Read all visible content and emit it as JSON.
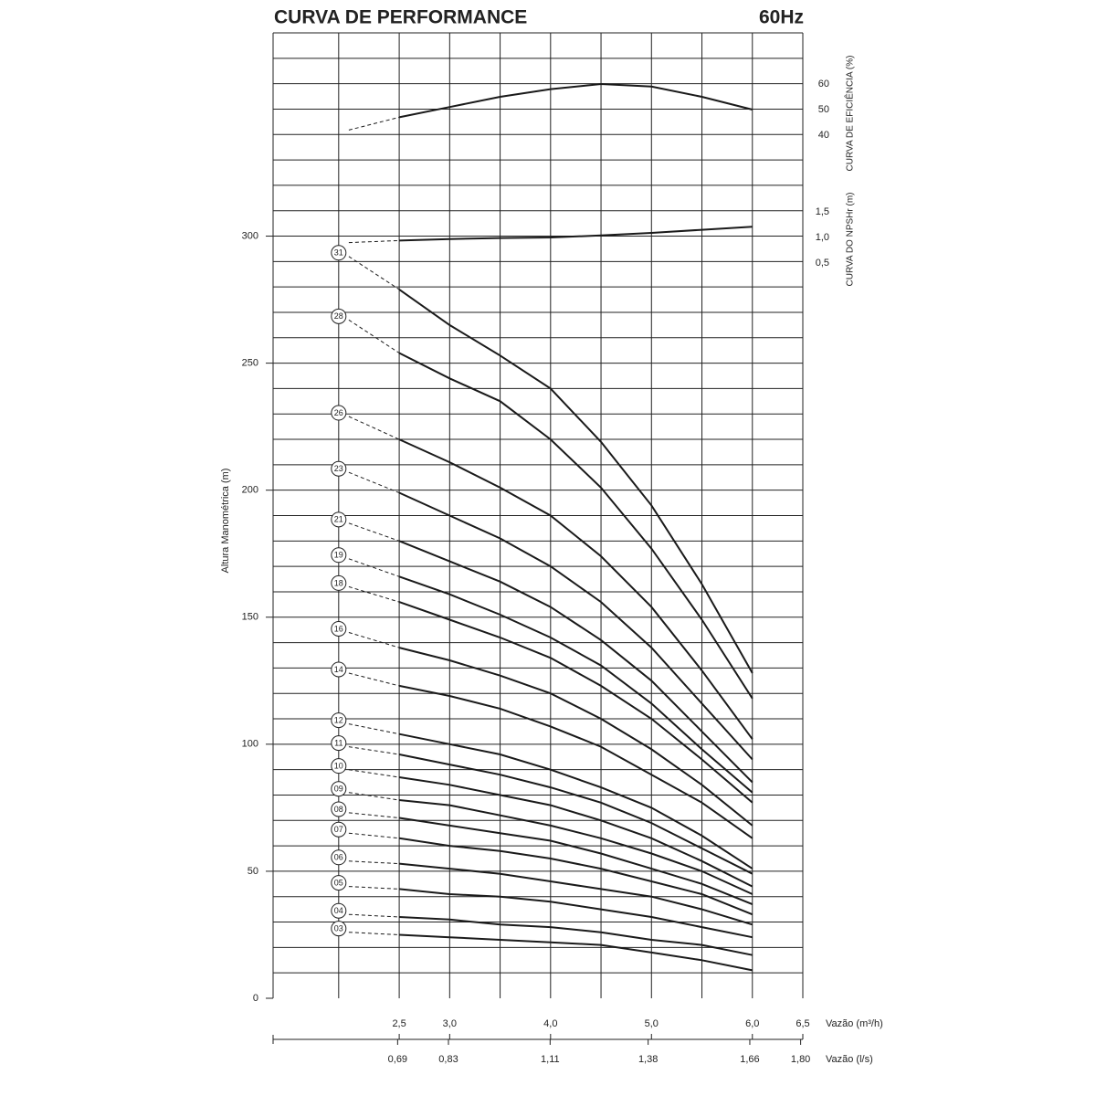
{
  "chart_data": [
    {
      "type": "line",
      "ylabel": "CURVA DE EFICIÊNCIA (%)",
      "ylim": [
        30,
        80
      ],
      "yticks": [
        40,
        50,
        60
      ],
      "dash_until_x": 2.5,
      "x": [
        2.0,
        2.5,
        3.0,
        3.5,
        4.0,
        4.5,
        5.0,
        5.5,
        6.0
      ],
      "series": [
        {
          "color": "#1a1a1a",
          "values": [
            42,
            47,
            51,
            55,
            58,
            60,
            59,
            55,
            50
          ]
        }
      ]
    },
    {
      "type": "line",
      "ylabel": "CURVA DO NPSHr (m)",
      "ylim": [
        0,
        2.5
      ],
      "yticks": [
        {
          "value": 0.5,
          "label": "0,5"
        },
        {
          "value": 1.0,
          "label": "1,0"
        },
        {
          "value": 1.5,
          "label": "1,5"
        }
      ],
      "dash_until_x": 2.5,
      "x": [
        2.0,
        2.5,
        3.0,
        3.5,
        4.0,
        4.5,
        5.0,
        5.5,
        6.0
      ],
      "series": [
        {
          "color": "#1a1a1a",
          "values": [
            0.9,
            0.94,
            0.97,
            0.99,
            1.0,
            1.04,
            1.09,
            1.15,
            1.21
          ]
        }
      ]
    },
    {
      "type": "line",
      "title": "CURVA DE PERFORMANCE",
      "subtitle": "60Hz",
      "ylabel": "Altura Manométrica (m)",
      "xlabel": "Vazão (m³/h)",
      "x2label": "Vazão (l/s)",
      "xlim": [
        1.25,
        6.5
      ],
      "x2lim": [
        0.347,
        1.806
      ],
      "ylim": [
        0,
        380
      ],
      "yticks": [
        0,
        50,
        100,
        150,
        200,
        250,
        300
      ],
      "xticks": [
        {
          "value": 2.5,
          "label": "2,5"
        },
        {
          "value": 3.0,
          "label": "3,0"
        },
        {
          "value": 4.0,
          "label": "4,0"
        },
        {
          "value": 5.0,
          "label": "5,0"
        },
        {
          "value": 6.0,
          "label": "6,0"
        },
        {
          "value": 6.5,
          "label": "6,5"
        }
      ],
      "x2ticks": [
        {
          "value": 0.69,
          "label": "0,69"
        },
        {
          "value": 0.83,
          "label": "0,83"
        },
        {
          "value": 1.11,
          "label": "1,11"
        },
        {
          "value": 1.38,
          "label": "1,38"
        },
        {
          "value": 1.66,
          "label": "1,66"
        },
        {
          "value": 1.8,
          "label": "1,80"
        }
      ],
      "x_grid": [
        1.9,
        2.5,
        3.0,
        3.5,
        4.0,
        4.5,
        5.0,
        5.5,
        6.0
      ],
      "y_grid": [
        10,
        20,
        30,
        40,
        50,
        60,
        70,
        80,
        90,
        100,
        110,
        120,
        130,
        140,
        150,
        160,
        170,
        180,
        190,
        200,
        210,
        220,
        230,
        240,
        250,
        260,
        270,
        280,
        290,
        300,
        310,
        320,
        330,
        340,
        350,
        360,
        370
      ],
      "label_x": 1.9,
      "dash_until_x": 2.5,
      "grid": true,
      "x": [
        2.0,
        2.5,
        3.0,
        3.5,
        4.0,
        4.5,
        5.0,
        5.5,
        6.0
      ],
      "series": [
        {
          "name": "31",
          "color": "#1a1a1a",
          "values": [
            292,
            279,
            265,
            253,
            240,
            219,
            194,
            163,
            128
          ]
        },
        {
          "name": "28",
          "color": "#1a1a1a",
          "values": [
            267,
            254,
            244,
            235,
            220,
            201,
            177,
            149,
            118
          ]
        },
        {
          "name": "26",
          "color": "#1a1a1a",
          "values": [
            229,
            220,
            211,
            201,
            190,
            174,
            154,
            129,
            102
          ]
        },
        {
          "name": "23",
          "color": "#1a1a1a",
          "values": [
            207,
            199,
            190,
            181,
            170,
            156,
            138,
            116,
            94
          ]
        },
        {
          "name": "21",
          "color": "#1a1a1a",
          "values": [
            187,
            180,
            172,
            164,
            154,
            141,
            125,
            105,
            85
          ]
        },
        {
          "name": "19",
          "color": "#1a1a1a",
          "values": [
            173,
            166,
            159,
            151,
            142,
            131,
            116,
            98,
            81
          ]
        },
        {
          "name": "18",
          "color": "#1a1a1a",
          "values": [
            162,
            156,
            149,
            142,
            134,
            123,
            110,
            94,
            77
          ]
        },
        {
          "name": "16",
          "color": "#1a1a1a",
          "values": [
            144,
            138,
            133,
            127,
            120,
            110,
            98,
            84,
            68
          ]
        },
        {
          "name": "14",
          "color": "#1a1a1a",
          "values": [
            128,
            123,
            119,
            114,
            107,
            99,
            88,
            77,
            63
          ]
        },
        {
          "name": "12",
          "color": "#1a1a1a",
          "values": [
            108,
            104,
            100,
            96,
            90,
            83,
            75,
            64,
            51
          ]
        },
        {
          "name": "11",
          "color": "#1a1a1a",
          "values": [
            99,
            96,
            92,
            88,
            83,
            77,
            69,
            59,
            49
          ]
        },
        {
          "name": "10",
          "color": "#1a1a1a",
          "values": [
            90,
            87,
            84,
            80,
            76,
            70,
            63,
            54,
            44
          ]
        },
        {
          "name": "09",
          "color": "#1a1a1a",
          "values": [
            81,
            78,
            76,
            72,
            68,
            63,
            57,
            50,
            41
          ]
        },
        {
          "name": "08",
          "color": "#1a1a1a",
          "values": [
            73,
            71,
            68,
            65,
            62,
            57,
            51,
            45,
            37
          ]
        },
        {
          "name": "07",
          "color": "#1a1a1a",
          "values": [
            65,
            63,
            60,
            58,
            55,
            51,
            46,
            41,
            33
          ]
        },
        {
          "name": "06",
          "color": "#1a1a1a",
          "values": [
            54,
            53,
            51,
            49,
            46,
            43,
            40,
            35,
            29
          ]
        },
        {
          "name": "05",
          "color": "#1a1a1a",
          "values": [
            44,
            43,
            41,
            40,
            38,
            35,
            32,
            28,
            24
          ]
        },
        {
          "name": "04",
          "color": "#1a1a1a",
          "values": [
            33,
            32,
            31,
            29,
            28,
            26,
            23,
            21,
            17
          ]
        },
        {
          "name": "03",
          "color": "#1a1a1a",
          "values": [
            26,
            25,
            24,
            23,
            22,
            21,
            18,
            15,
            11
          ]
        }
      ]
    }
  ]
}
